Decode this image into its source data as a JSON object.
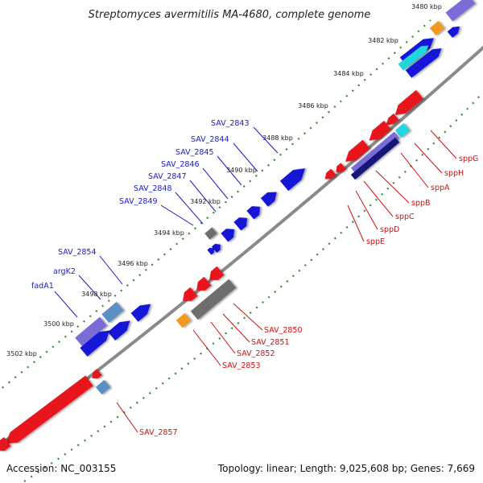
{
  "title": "Streptomyces avermitilis MA-4680, complete genome",
  "accession": "Accession: NC_003155",
  "summary": "Topology: linear; Length: 9,025,608 bp; Genes: 7,669",
  "colors": {
    "backbone": "#8a8a8a",
    "tick": "#2e8b2e",
    "forward_label": "#1a1acc",
    "reverse_label": "#cc1111",
    "red": "#e8141e",
    "blue": "#1414d8",
    "grey": "#6e6e6e",
    "orange": "#f39a1a",
    "cyan": "#22d6e0",
    "steel": "#5b8fc4",
    "lavender": "#7a6cd6",
    "navy": "#141478"
  },
  "kbp_ticks": [
    "3480 kbp",
    "3482 kbp",
    "3484 kbp",
    "3486 kbp",
    "3488 kbp",
    "3490 kbp",
    "3492 kbp",
    "3494 kbp",
    "3496 kbp",
    "3498 kbp",
    "3500 kbp",
    "3502 kbp"
  ],
  "forward_labels": [
    "SAV_2843",
    "SAV_2844",
    "SAV_2845",
    "SAV_2846",
    "SAV_2847",
    "SAV_2848",
    "SAV_2849",
    "SAV_2854",
    "argK2",
    "fadA1"
  ],
  "reverse_labels": [
    "sppG",
    "sppH",
    "sppA",
    "sppB",
    "sppC",
    "sppD",
    "sppE",
    "SAV_2850",
    "SAV_2851",
    "SAV_2852",
    "SAV_2853",
    "SAV_2857"
  ]
}
